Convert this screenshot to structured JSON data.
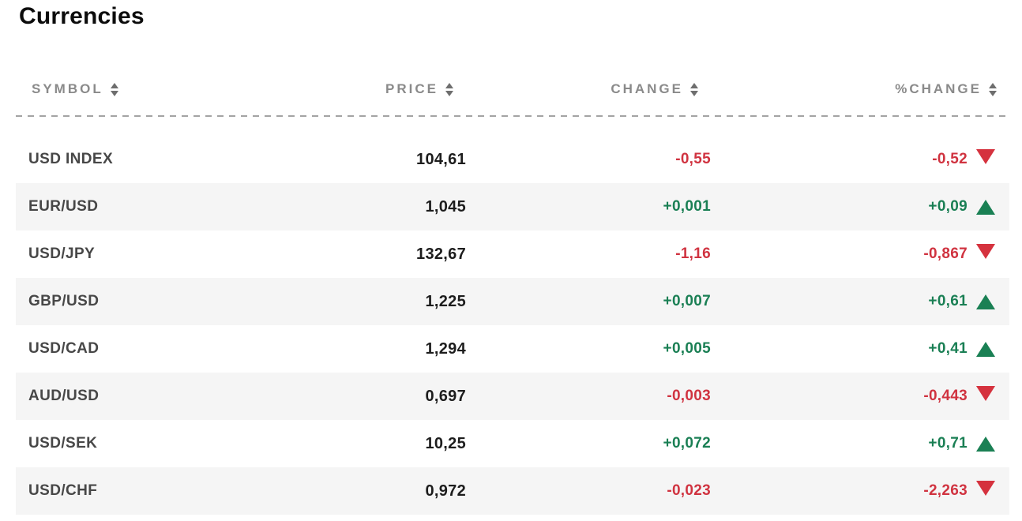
{
  "title": "Currencies",
  "colors": {
    "positive": "#1a7f54",
    "negative": "#d03340",
    "header_text": "#8a8a8a",
    "symbol_text": "#474747",
    "price_text": "#1d1d1d",
    "alt_row_background": "#f5f5f5"
  },
  "table": {
    "columns": [
      {
        "label": "SYMBOL",
        "sort_icon": "sort-arrows"
      },
      {
        "label": "PRICE",
        "sort_icon": "sort-arrows"
      },
      {
        "label": "CHANGE",
        "sort_icon": "sort-arrows"
      },
      {
        "label": "%CHANGE",
        "sort_icon": "sort-arrows"
      }
    ],
    "rows": [
      {
        "symbol": "USD INDEX",
        "price": "104,61",
        "change": "-0,55",
        "pct_change": "-0,52",
        "direction": "down"
      },
      {
        "symbol": "EUR/USD",
        "price": "1,045",
        "change": "+0,001",
        "pct_change": "+0,09",
        "direction": "up"
      },
      {
        "symbol": "USD/JPY",
        "price": "132,67",
        "change": "-1,16",
        "pct_change": "-0,867",
        "direction": "down"
      },
      {
        "symbol": "GBP/USD",
        "price": "1,225",
        "change": "+0,007",
        "pct_change": "+0,61",
        "direction": "up"
      },
      {
        "symbol": "USD/CAD",
        "price": "1,294",
        "change": "+0,005",
        "pct_change": "+0,41",
        "direction": "up"
      },
      {
        "symbol": "AUD/USD",
        "price": "0,697",
        "change": "-0,003",
        "pct_change": "-0,443",
        "direction": "down"
      },
      {
        "symbol": "USD/SEK",
        "price": "10,25",
        "change": "+0,072",
        "pct_change": "+0,71",
        "direction": "up"
      },
      {
        "symbol": "USD/CHF",
        "price": "0,972",
        "change": "-0,023",
        "pct_change": "-2,263",
        "direction": "down"
      }
    ]
  }
}
